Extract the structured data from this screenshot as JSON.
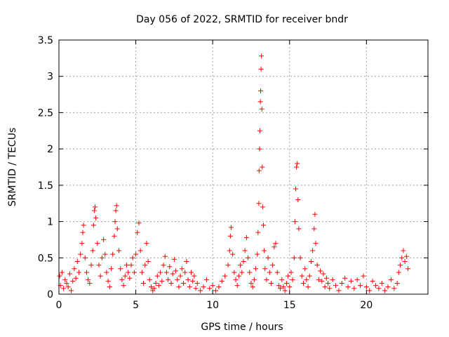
{
  "chart_data": {
    "type": "scatter",
    "title": "Day 056 of 2022, SRMTID for receiver bndr",
    "xlabel": "GPS time / hours",
    "ylabel": "SRMTID / TECUs",
    "xlim": [
      0,
      24
    ],
    "ylim": [
      0,
      3.5
    ],
    "xticks": [
      0,
      5,
      10,
      15,
      20
    ],
    "yticks": [
      0,
      0.5,
      1,
      1.5,
      2,
      2.5,
      3,
      3.5
    ],
    "xtick_labels": [
      "0",
      "5",
      "10",
      "15",
      "20"
    ],
    "ytick_labels": [
      "0",
      "0.5",
      "1",
      "1.5",
      "2",
      "2.5",
      "3",
      "3.5"
    ],
    "grid": true,
    "marker": "+",
    "series_color": "#ff0000",
    "series": [
      {
        "name": "SRMTID",
        "points": [
          [
            0.05,
            0.25
          ],
          [
            0.1,
            0.12
          ],
          [
            0.2,
            0.3
          ],
          [
            0.3,
            0.08
          ],
          [
            0.4,
            0.2
          ],
          [
            0.5,
            0.15
          ],
          [
            0.6,
            0.1
          ],
          [
            0.7,
            0.28
          ],
          [
            0.8,
            0.05
          ],
          [
            0.9,
            0.18
          ],
          [
            1.0,
            0.35
          ],
          [
            1.1,
            0.22
          ],
          [
            1.2,
            0.45
          ],
          [
            1.3,
            0.3
          ],
          [
            1.4,
            0.55
          ],
          [
            1.5,
            0.7
          ],
          [
            1.55,
            0.85
          ],
          [
            1.6,
            0.95
          ],
          [
            1.7,
            0.5
          ],
          [
            1.8,
            0.3
          ],
          [
            1.9,
            0.2
          ],
          [
            2.0,
            0.15
          ],
          [
            2.1,
            0.4
          ],
          [
            2.2,
            0.6
          ],
          [
            2.25,
            0.95
          ],
          [
            2.3,
            1.15
          ],
          [
            2.35,
            1.2
          ],
          [
            2.4,
            1.05
          ],
          [
            2.5,
            0.7
          ],
          [
            2.6,
            0.4
          ],
          [
            2.7,
            0.25
          ],
          [
            2.8,
            0.5
          ],
          [
            2.9,
            0.75
          ],
          [
            3.0,
            0.55
          ],
          [
            3.1,
            0.3
          ],
          [
            3.2,
            0.18
          ],
          [
            3.3,
            0.1
          ],
          [
            3.4,
            0.35
          ],
          [
            3.5,
            0.55
          ],
          [
            3.6,
            0.8
          ],
          [
            3.65,
            1.0
          ],
          [
            3.7,
            1.15
          ],
          [
            3.75,
            1.22
          ],
          [
            3.8,
            0.9
          ],
          [
            3.9,
            0.6
          ],
          [
            4.0,
            0.35
          ],
          [
            4.1,
            0.2
          ],
          [
            4.2,
            0.12
          ],
          [
            4.3,
            0.25
          ],
          [
            4.4,
            0.4
          ],
          [
            4.5,
            0.3
          ],
          [
            4.6,
            0.22
          ],
          [
            4.7,
            0.4
          ],
          [
            4.8,
            0.5
          ],
          [
            4.9,
            0.3
          ],
          [
            5.0,
            0.55
          ],
          [
            5.1,
            0.85
          ],
          [
            5.2,
            0.98
          ],
          [
            5.3,
            0.6
          ],
          [
            5.4,
            0.3
          ],
          [
            5.5,
            0.15
          ],
          [
            5.6,
            0.4
          ],
          [
            5.7,
            0.7
          ],
          [
            5.8,
            0.45
          ],
          [
            5.9,
            0.2
          ],
          [
            6.0,
            0.1
          ],
          [
            6.1,
            0.05
          ],
          [
            6.2,
            0.08
          ],
          [
            6.3,
            0.15
          ],
          [
            6.4,
            0.25
          ],
          [
            6.5,
            0.12
          ],
          [
            6.6,
            0.3
          ],
          [
            6.7,
            0.18
          ],
          [
            6.8,
            0.4
          ],
          [
            6.9,
            0.52
          ],
          [
            7.0,
            0.3
          ],
          [
            7.1,
            0.2
          ],
          [
            7.2,
            0.38
          ],
          [
            7.3,
            0.15
          ],
          [
            7.4,
            0.28
          ],
          [
            7.5,
            0.48
          ],
          [
            7.6,
            0.32
          ],
          [
            7.7,
            0.2
          ],
          [
            7.8,
            0.1
          ],
          [
            7.9,
            0.25
          ],
          [
            8.0,
            0.35
          ],
          [
            8.1,
            0.15
          ],
          [
            8.2,
            0.3
          ],
          [
            8.3,
            0.45
          ],
          [
            8.4,
            0.2
          ],
          [
            8.5,
            0.1
          ],
          [
            8.6,
            0.3
          ],
          [
            8.7,
            0.18
          ],
          [
            8.8,
            0.25
          ],
          [
            8.9,
            0.08
          ],
          [
            9.0,
            0.15
          ],
          [
            9.2,
            0.05
          ],
          [
            9.4,
            0.1
          ],
          [
            9.6,
            0.2
          ],
          [
            9.8,
            0.08
          ],
          [
            10.0,
            0.12
          ],
          [
            10.2,
            0.05
          ],
          [
            10.4,
            0.1
          ],
          [
            10.6,
            0.18
          ],
          [
            10.8,
            0.25
          ],
          [
            11.0,
            0.4
          ],
          [
            11.1,
            0.6
          ],
          [
            11.15,
            0.8
          ],
          [
            11.2,
            0.92
          ],
          [
            11.3,
            0.55
          ],
          [
            11.4,
            0.3
          ],
          [
            11.5,
            0.2
          ],
          [
            11.6,
            0.12
          ],
          [
            11.7,
            0.25
          ],
          [
            11.8,
            0.4
          ],
          [
            11.9,
            0.3
          ],
          [
            12.0,
            0.45
          ],
          [
            12.1,
            0.6
          ],
          [
            12.2,
            0.78
          ],
          [
            12.3,
            0.5
          ],
          [
            12.4,
            0.3
          ],
          [
            12.5,
            0.15
          ],
          [
            12.6,
            0.1
          ],
          [
            12.7,
            0.2
          ],
          [
            12.8,
            0.35
          ],
          [
            12.9,
            0.55
          ],
          [
            12.95,
            0.85
          ],
          [
            13.0,
            1.25
          ],
          [
            13.02,
            1.7
          ],
          [
            13.05,
            2.0
          ],
          [
            13.07,
            2.25
          ],
          [
            13.1,
            2.65
          ],
          [
            13.12,
            2.8
          ],
          [
            13.15,
            3.1
          ],
          [
            13.17,
            3.28
          ],
          [
            13.2,
            2.55
          ],
          [
            13.22,
            1.75
          ],
          [
            13.25,
            1.2
          ],
          [
            13.3,
            0.95
          ],
          [
            13.35,
            0.6
          ],
          [
            13.4,
            0.35
          ],
          [
            13.5,
            0.2
          ],
          [
            13.6,
            0.5
          ],
          [
            13.7,
            0.3
          ],
          [
            13.8,
            0.15
          ],
          [
            13.9,
            0.4
          ],
          [
            14.0,
            0.65
          ],
          [
            14.1,
            0.7
          ],
          [
            14.2,
            0.3
          ],
          [
            14.3,
            0.12
          ],
          [
            14.4,
            0.08
          ],
          [
            14.5,
            0.2
          ],
          [
            14.6,
            0.1
          ],
          [
            14.7,
            0.05
          ],
          [
            14.8,
            0.15
          ],
          [
            14.9,
            0.25
          ],
          [
            15.0,
            0.1
          ],
          [
            15.1,
            0.3
          ],
          [
            15.2,
            0.2
          ],
          [
            15.3,
            0.5
          ],
          [
            15.35,
            1.0
          ],
          [
            15.4,
            1.45
          ],
          [
            15.45,
            1.75
          ],
          [
            15.5,
            1.8
          ],
          [
            15.55,
            1.3
          ],
          [
            15.6,
            0.9
          ],
          [
            15.7,
            0.5
          ],
          [
            15.8,
            0.25
          ],
          [
            15.9,
            0.15
          ],
          [
            16.0,
            0.35
          ],
          [
            16.1,
            0.2
          ],
          [
            16.2,
            0.1
          ],
          [
            16.3,
            0.25
          ],
          [
            16.4,
            0.45
          ],
          [
            16.5,
            0.6
          ],
          [
            16.6,
            0.9
          ],
          [
            16.65,
            1.1
          ],
          [
            16.7,
            0.7
          ],
          [
            16.8,
            0.4
          ],
          [
            16.9,
            0.2
          ],
          [
            17.0,
            0.32
          ],
          [
            17.1,
            0.18
          ],
          [
            17.2,
            0.28
          ],
          [
            17.3,
            0.1
          ],
          [
            17.4,
            0.22
          ],
          [
            17.5,
            0.15
          ],
          [
            17.6,
            0.08
          ],
          [
            17.8,
            0.2
          ],
          [
            18.0,
            0.12
          ],
          [
            18.2,
            0.05
          ],
          [
            18.4,
            0.15
          ],
          [
            18.6,
            0.22
          ],
          [
            18.8,
            0.1
          ],
          [
            19.0,
            0.18
          ],
          [
            19.2,
            0.08
          ],
          [
            19.4,
            0.2
          ],
          [
            19.6,
            0.12
          ],
          [
            19.8,
            0.25
          ],
          [
            20.0,
            0.1
          ],
          [
            20.2,
            0.05
          ],
          [
            20.4,
            0.18
          ],
          [
            20.6,
            0.12
          ],
          [
            20.8,
            0.08
          ],
          [
            21.0,
            0.15
          ],
          [
            21.2,
            0.05
          ],
          [
            21.4,
            0.1
          ],
          [
            21.6,
            0.2
          ],
          [
            21.8,
            0.08
          ],
          [
            22.0,
            0.15
          ],
          [
            22.1,
            0.3
          ],
          [
            22.2,
            0.4
          ],
          [
            22.3,
            0.5
          ],
          [
            22.4,
            0.6
          ],
          [
            22.5,
            0.45
          ],
          [
            22.6,
            0.52
          ],
          [
            22.7,
            0.35
          ]
        ]
      }
    ]
  }
}
